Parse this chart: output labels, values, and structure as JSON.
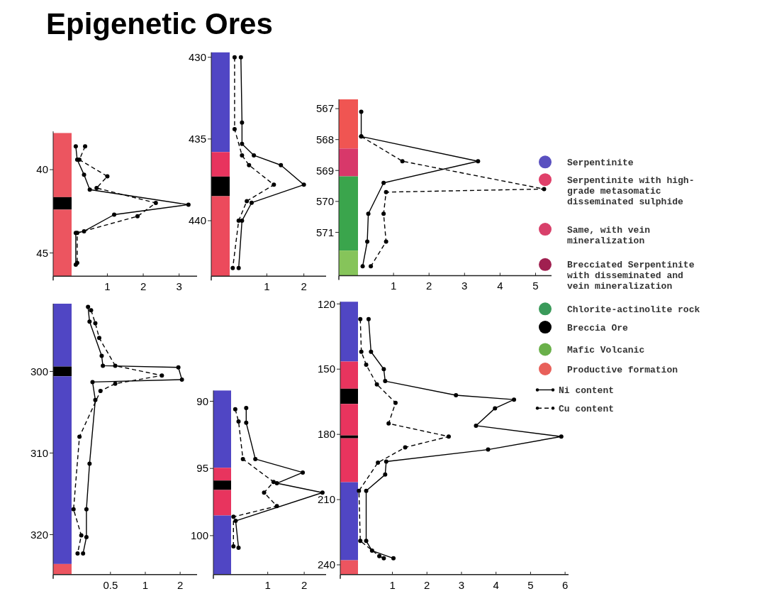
{
  "chart_data": [
    {
      "type": "line",
      "title": "Epigenetic Ores",
      "xlim": [
        -0.51,
        3.5
      ],
      "xticks": [
        1,
        2,
        3
      ],
      "ylim": [
        46.4,
        37.7
      ],
      "yticks": [
        40,
        45
      ],
      "marker": "circle",
      "bands": [
        {
          "axis": "y",
          "from": 37.8,
          "to": 41.65,
          "color": "#ec5560"
        },
        {
          "axis": "y",
          "from": 41.65,
          "to": 42.4,
          "color": "#000000"
        },
        {
          "axis": "y",
          "from": 42.4,
          "to": 46.4,
          "color": "#ec5560"
        }
      ],
      "series": [
        {
          "color": "#000000",
          "line_style": "solid",
          "x": [
            0.12,
            0.16,
            0.35,
            0.51,
            3.26,
            1.19,
            0.35,
            0.12,
            0.12
          ],
          "values": [
            38.6,
            39.4,
            40.3,
            41.2,
            42.1,
            42.7,
            43.7,
            43.8,
            45.7
          ]
        },
        {
          "color": "#000000",
          "line_style": "dashed",
          "x": [
            0.38,
            0.22,
            1.0,
            0.7,
            2.35,
            1.84,
            0.16,
            0.16
          ],
          "values": [
            38.6,
            39.4,
            40.4,
            41.1,
            42.0,
            42.8,
            43.8,
            45.6
          ]
        }
      ]
    },
    {
      "type": "line",
      "xlim": [
        -0.5,
        2.6
      ],
      "xticks": [
        1,
        2
      ],
      "ylim": [
        443.4,
        429.7
      ],
      "yticks": [
        430,
        435,
        440
      ],
      "marker": "circle",
      "bands": [
        {
          "axis": "y",
          "from": 429.7,
          "to": 435.8,
          "color": "#5046c4"
        },
        {
          "axis": "y",
          "from": 435.8,
          "to": 437.3,
          "color": "#e8345e"
        },
        {
          "axis": "y",
          "from": 437.3,
          "to": 438.5,
          "color": "#000000"
        },
        {
          "axis": "y",
          "from": 438.5,
          "to": 443.4,
          "color": "#ec4a5c"
        }
      ],
      "series": [
        {
          "color": "#000000",
          "line_style": "solid",
          "x": [
            0.3,
            0.33,
            0.33,
            0.65,
            1.38,
            2.0,
            0.59,
            0.33,
            0.24
          ],
          "values": [
            430.0,
            434.0,
            435.3,
            436.0,
            436.6,
            437.8,
            438.9,
            440.0,
            442.9
          ]
        },
        {
          "color": "#000000",
          "line_style": "dashed",
          "x": [
            0.13,
            0.13,
            0.33,
            0.52,
            1.19,
            0.46,
            0.24,
            0.08
          ],
          "values": [
            430.0,
            434.4,
            436.0,
            436.6,
            437.8,
            438.8,
            440.0,
            442.9
          ]
        }
      ]
    },
    {
      "type": "line",
      "xlim": [
        -0.54,
        5.45
      ],
      "xticks": [
        1,
        2,
        3,
        4,
        5
      ],
      "ylim": [
        572.4,
        566.7
      ],
      "yticks": [
        567,
        568,
        569,
        570,
        571
      ],
      "marker": "circle",
      "legend": "right",
      "bands": [
        {
          "axis": "y",
          "from": 566.7,
          "to": 568.29,
          "color": "#f05552"
        },
        {
          "axis": "y",
          "from": 568.29,
          "to": 569.19,
          "color": "#d8386a"
        },
        {
          "axis": "y",
          "from": 569.19,
          "to": 571.59,
          "color": "#3aa54c"
        },
        {
          "axis": "y",
          "from": 571.59,
          "to": 572.4,
          "color": "#86c45a"
        }
      ],
      "series": [
        {
          "name": "Ni content",
          "color": "#000000",
          "line_style": "solid",
          "x": [
            0.09,
            0.09,
            3.38,
            0.72,
            0.29,
            0.26,
            0.13
          ],
          "values": [
            567.1,
            567.9,
            568.7,
            569.4,
            570.4,
            571.3,
            572.1
          ]
        },
        {
          "name": "Cu content",
          "color": "#000000",
          "line_style": "dashed",
          "x": [
            0.09,
            1.25,
            5.24,
            0.79,
            0.72,
            0.79,
            0.36
          ],
          "values": [
            567.9,
            568.7,
            569.6,
            569.7,
            570.4,
            571.3,
            572.1
          ]
        }
      ]
    },
    {
      "type": "line",
      "log": "x",
      "xlim": [
        0.16,
        2.8
      ],
      "xticks": [
        0.5,
        1,
        2
      ],
      "ylim": [
        324.9,
        291.7
      ],
      "yticks": [
        300,
        310,
        320
      ],
      "marker": "circle",
      "bands": [
        {
          "axis": "y",
          "from": 291.7,
          "to": 299.4,
          "color": "#5046c4"
        },
        {
          "axis": "y",
          "from": 299.4,
          "to": 300.6,
          "color": "#000000"
        },
        {
          "axis": "y",
          "from": 300.6,
          "to": 323.6,
          "color": "#5046c4"
        },
        {
          "axis": "y",
          "from": 323.6,
          "to": 324.9,
          "color": "#ec5560"
        }
      ],
      "series": [
        {
          "color": "#000000",
          "line_style": "solid",
          "x": [
            0.32,
            0.33,
            0.42,
            0.43,
            1.93,
            2.07,
            0.35,
            0.37,
            0.33,
            0.31,
            0.31,
            0.29
          ],
          "values": [
            292.1,
            293.9,
            298.1,
            299.3,
            299.5,
            301.0,
            301.3,
            303.5,
            311.3,
            316.9,
            320.3,
            322.3
          ]
        },
        {
          "color": "#000000",
          "line_style": "dashed",
          "x": [
            0.34,
            0.37,
            0.4,
            0.55,
            1.39,
            0.55,
            0.41,
            0.27,
            0.24,
            0.28,
            0.26
          ],
          "values": [
            292.5,
            294.1,
            295.9,
            299.3,
            300.5,
            301.5,
            302.4,
            308.0,
            316.9,
            320.1,
            322.3
          ]
        }
      ]
    },
    {
      "type": "line",
      "xlim": [
        -0.49,
        2.6
      ],
      "xticks": [
        1,
        2
      ],
      "ylim": [
        102.9,
        89.2
      ],
      "yticks": [
        90,
        95,
        100
      ],
      "marker": "circle",
      "bands": [
        {
          "axis": "y",
          "from": 89.2,
          "to": 94.95,
          "color": "#5046c4"
        },
        {
          "axis": "y",
          "from": 94.95,
          "to": 95.9,
          "color": "#e8345e"
        },
        {
          "axis": "y",
          "from": 95.9,
          "to": 96.6,
          "color": "#000000"
        },
        {
          "axis": "y",
          "from": 96.6,
          "to": 98.5,
          "color": "#e8345e"
        },
        {
          "axis": "y",
          "from": 98.5,
          "to": 102.9,
          "color": "#5046c4"
        }
      ],
      "series": [
        {
          "color": "#000000",
          "line_style": "solid",
          "x": [
            0.41,
            0.41,
            0.66,
            1.96,
            1.25,
            2.5,
            0.12,
            0.2
          ],
          "values": [
            90.5,
            91.6,
            94.3,
            95.3,
            96.1,
            96.8,
            98.9,
            100.9
          ]
        },
        {
          "color": "#000000",
          "line_style": "dashed",
          "x": [
            0.11,
            0.2,
            0.32,
            1.16,
            0.9,
            1.25,
            0.06,
            0.06
          ],
          "values": [
            90.6,
            91.5,
            94.3,
            96.0,
            96.8,
            97.8,
            98.6,
            100.8
          ]
        }
      ]
    },
    {
      "type": "line",
      "xlim": [
        -0.51,
        6.1
      ],
      "xticks": [
        1,
        2,
        3,
        4,
        5,
        6
      ],
      "ylim": [
        244.5,
        119
      ],
      "yticks": [
        120,
        150,
        180,
        210,
        240
      ],
      "marker": "circle",
      "bands": [
        {
          "axis": "y",
          "from": 119,
          "to": 146.5,
          "color": "#5046c4"
        },
        {
          "axis": "y",
          "from": 146.5,
          "to": 159,
          "color": "#e8345e"
        },
        {
          "axis": "y",
          "from": 159,
          "to": 166,
          "color": "#000000"
        },
        {
          "axis": "y",
          "from": 166,
          "to": 180.5,
          "color": "#e8345e"
        },
        {
          "axis": "y",
          "from": 180.5,
          "to": 181.8,
          "color": "#000000"
        },
        {
          "axis": "y",
          "from": 181.8,
          "to": 202,
          "color": "#e8345e"
        },
        {
          "axis": "y",
          "from": 202,
          "to": 237.9,
          "color": "#5046c4"
        },
        {
          "axis": "y",
          "from": 237.9,
          "to": 244.5,
          "color": "#ec5560"
        }
      ],
      "series": [
        {
          "color": "#000000",
          "line_style": "solid",
          "x": [
            0.31,
            0.38,
            0.75,
            0.79,
            2.84,
            4.52,
            3.97,
            3.42,
            5.89,
            3.77,
            0.82,
            0.79,
            0.24,
            0.24,
            0.41,
            1.03
          ],
          "values": [
            127,
            142,
            150,
            155.5,
            162,
            164,
            168,
            176,
            181,
            187,
            192.5,
            198.5,
            206,
            229,
            233.5,
            237
          ]
        },
        {
          "color": "#000000",
          "line_style": "dashed",
          "x": [
            0.07,
            0.1,
            0.24,
            0.55,
            1.09,
            0.89,
            2.63,
            1.37,
            0.58,
            0.03,
            0.07,
            0.62,
            0.75
          ],
          "values": [
            127,
            142,
            148,
            157,
            165.5,
            175,
            181,
            186,
            193,
            206,
            229,
            236,
            237
          ]
        }
      ]
    },
    {
      "type": "other",
      "categories": [
        "Serpentinite",
        "Serpentinite with high-\ngrade metasomatic\ndisseminated sulphide",
        "Same, with vein\nmineralization",
        "Brecciated Serpentinite\nwith disseminated and\nvein mineralization",
        "Chlorite-actinolite rock",
        "Breccia Ore",
        "Mafic Volcanic",
        "Productive formation"
      ],
      "colors": [
        "#5a50c0",
        "#e0406a",
        "#d8406a",
        "#a02050",
        "#3a9a5a",
        "#000000",
        "#6ab04a",
        "#e8605a"
      ]
    }
  ]
}
